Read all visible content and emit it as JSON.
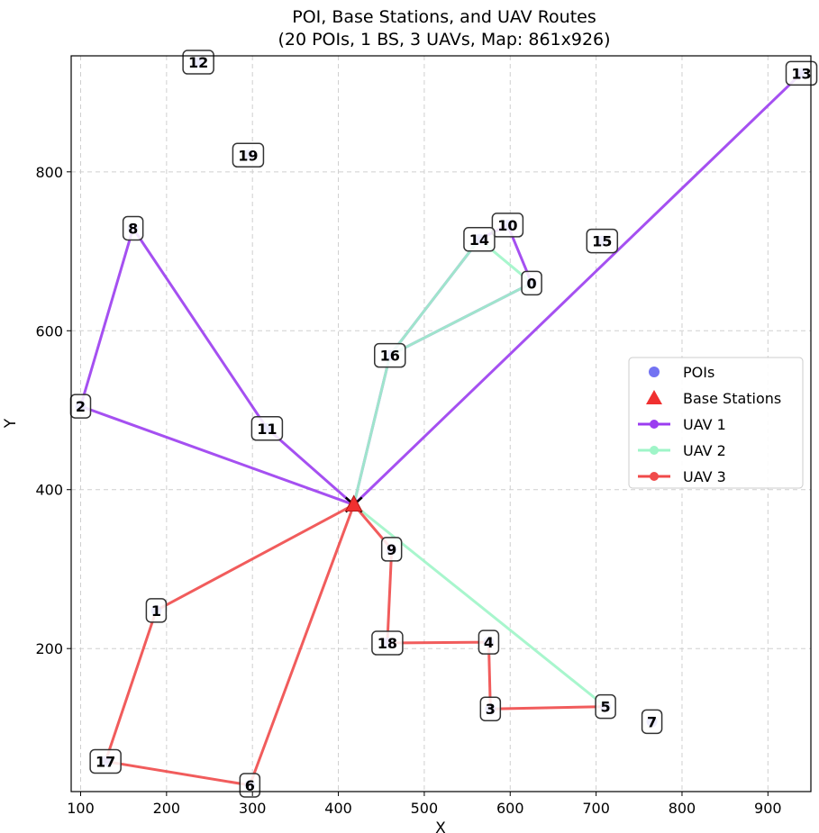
{
  "chart_data": {
    "type": "scatter",
    "title_line1": "POI, Base Stations, and UAV Routes",
    "title_line2": "(20 POIs, 1 BS, 3 UAVs, Map: 861x926)",
    "xlabel": "X",
    "ylabel": "Y",
    "xlim": [
      89,
      950
    ],
    "ylim": [
      20,
      946
    ],
    "xticks": [
      100,
      200,
      300,
      400,
      500,
      600,
      700,
      800,
      900
    ],
    "yticks": [
      200,
      400,
      600,
      800
    ],
    "grid": true,
    "legend_position": "center-right",
    "pois": [
      {
        "id": "0",
        "x": 625,
        "y": 660
      },
      {
        "id": "1",
        "x": 188,
        "y": 248
      },
      {
        "id": "2",
        "x": 100,
        "y": 505
      },
      {
        "id": "3",
        "x": 577,
        "y": 124
      },
      {
        "id": "4",
        "x": 575,
        "y": 208
      },
      {
        "id": "5",
        "x": 711,
        "y": 127
      },
      {
        "id": "6",
        "x": 297,
        "y": 28
      },
      {
        "id": "7",
        "x": 765,
        "y": 108
      },
      {
        "id": "8",
        "x": 161,
        "y": 729
      },
      {
        "id": "9",
        "x": 462,
        "y": 325
      },
      {
        "id": "10",
        "x": 597,
        "y": 733
      },
      {
        "id": "11",
        "x": 317,
        "y": 477
      },
      {
        "id": "12",
        "x": 237,
        "y": 938
      },
      {
        "id": "13",
        "x": 939,
        "y": 924
      },
      {
        "id": "14",
        "x": 564,
        "y": 715
      },
      {
        "id": "15",
        "x": 707,
        "y": 713
      },
      {
        "id": "16",
        "x": 460,
        "y": 569
      },
      {
        "id": "17",
        "x": 129,
        "y": 58
      },
      {
        "id": "18",
        "x": 457,
        "y": 207
      },
      {
        "id": "19",
        "x": 295,
        "y": 821
      }
    ],
    "base_stations": [
      {
        "x": 418,
        "y": 381
      }
    ],
    "series": [
      {
        "name": "UAV 1",
        "color": "#9b3df0",
        "route": [
          [
            418,
            381
          ],
          [
            100,
            505
          ],
          [
            161,
            729
          ],
          [
            317,
            477
          ],
          [
            418,
            381
          ],
          [
            460,
            569
          ],
          [
            564,
            715
          ],
          [
            597,
            733
          ],
          [
            625,
            660
          ],
          [
            460,
            569
          ],
          [
            418,
            381
          ],
          [
            939,
            924
          ],
          [
            418,
            381
          ]
        ]
      },
      {
        "name": "UAV 2",
        "color": "#9ff5c8",
        "route": [
          [
            418,
            381
          ],
          [
            460,
            569
          ],
          [
            625,
            660
          ],
          [
            564,
            715
          ],
          [
            460,
            569
          ],
          [
            418,
            381
          ],
          [
            711,
            127
          ],
          [
            418,
            381
          ]
        ]
      },
      {
        "name": "UAV 3",
        "color": "#f04a4a",
        "route": [
          [
            418,
            381
          ],
          [
            188,
            248
          ],
          [
            129,
            58
          ],
          [
            297,
            28
          ],
          [
            418,
            381
          ],
          [
            462,
            325
          ],
          [
            457,
            207
          ],
          [
            575,
            208
          ],
          [
            577,
            124
          ],
          [
            711,
            127
          ]
        ]
      }
    ],
    "legend": [
      {
        "label": "POIs",
        "kind": "dot",
        "color": "#5a5af0"
      },
      {
        "label": "Base Stations",
        "kind": "triangle",
        "color": "#f03030"
      },
      {
        "label": "UAV 1",
        "kind": "line",
        "color": "#9b3df0"
      },
      {
        "label": "UAV 2",
        "kind": "line",
        "color": "#9ff5c8"
      },
      {
        "label": "UAV 3",
        "kind": "line",
        "color": "#f04a4a"
      }
    ]
  }
}
